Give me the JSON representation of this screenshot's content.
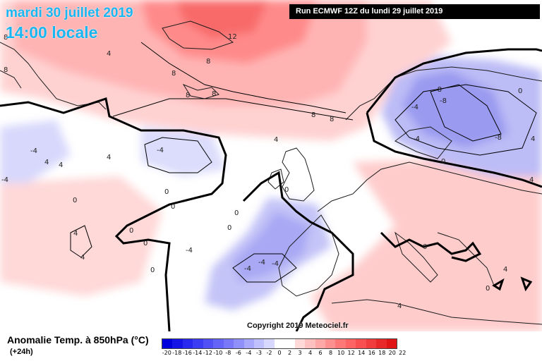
{
  "header": {
    "date": "mardi 30 juillet 2019",
    "time": "14:00 locale",
    "run": "Run ECMWF 12Z du lundi 29 juillet 2019"
  },
  "copyright": "Copyright 2019 Meteociel.fr",
  "legend": {
    "title": "Anomalie Temp. à 850hPa (°C)",
    "subtitle": "(+24h)",
    "ticks": [
      "-20",
      "-18",
      "-16",
      "-14",
      "-12",
      "-10",
      "-8",
      "-6",
      "-4",
      "-3",
      "-2",
      "0",
      "2",
      "3",
      "4",
      "6",
      "8",
      "10",
      "12",
      "14",
      "16",
      "18",
      "20",
      "22"
    ],
    "colors": [
      "#0000dc",
      "#1414e6",
      "#2828ee",
      "#3c3cf2",
      "#5050f4",
      "#6464f6",
      "#7878f8",
      "#9090fa",
      "#a8a8fc",
      "#c0c0fe",
      "#d8d8ff",
      "#ffffff",
      "#ffffff",
      "#ffd8d8",
      "#ffc0c0",
      "#ffa8a8",
      "#ff9090",
      "#ff7878",
      "#ff6464",
      "#f85050",
      "#f03c3c",
      "#e82828",
      "#e01414"
    ]
  },
  "map_labels": [
    {
      "text": "12"
    },
    {
      "text": "8"
    },
    {
      "text": "8"
    },
    {
      "text": "8"
    },
    {
      "text": "8"
    },
    {
      "text": "8"
    },
    {
      "text": "8"
    },
    {
      "text": "8"
    },
    {
      "text": "8"
    },
    {
      "text": "4"
    },
    {
      "text": "4"
    },
    {
      "text": "4"
    },
    {
      "text": "4"
    },
    {
      "text": "-4"
    },
    {
      "text": "-4"
    },
    {
      "text": "4"
    },
    {
      "text": "-4"
    },
    {
      "text": "0"
    },
    {
      "text": "0"
    },
    {
      "text": "0"
    },
    {
      "text": "0"
    },
    {
      "text": "0"
    },
    {
      "text": "0"
    },
    {
      "text": "0"
    },
    {
      "text": "4"
    },
    {
      "text": "4"
    },
    {
      "text": "-4"
    },
    {
      "text": "-4"
    },
    {
      "text": "-4"
    },
    {
      "text": "-4"
    },
    {
      "text": "0"
    },
    {
      "text": "-8"
    },
    {
      "text": "-8"
    },
    {
      "text": "-4"
    },
    {
      "text": "-4"
    },
    {
      "text": "-8"
    },
    {
      "text": "0"
    },
    {
      "text": "0"
    },
    {
      "text": "4"
    },
    {
      "text": "4"
    },
    {
      "text": "0"
    },
    {
      "text": "0"
    },
    {
      "text": "4"
    },
    {
      "text": "4"
    },
    {
      "text": "0"
    }
  ]
}
